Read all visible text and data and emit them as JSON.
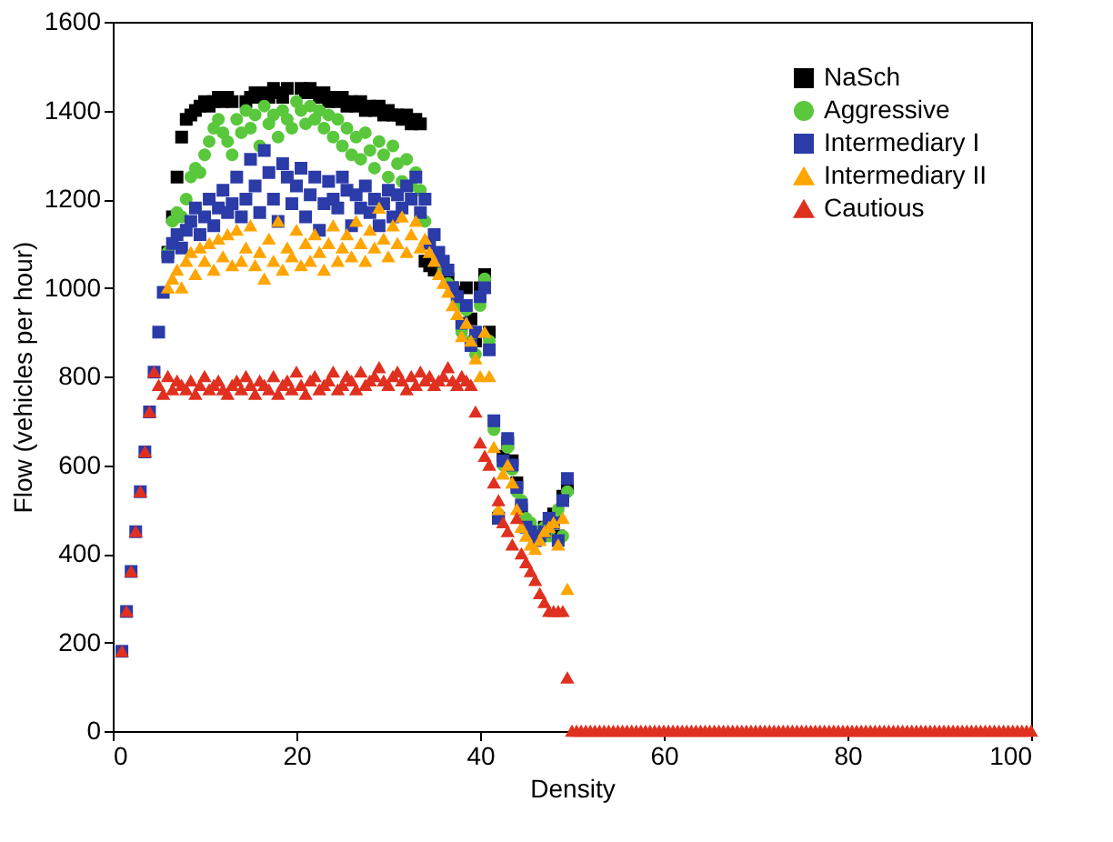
{
  "chart_data": {
    "type": "scatter",
    "xlabel": "Density",
    "ylabel": "Flow (vehicles per hour)",
    "xlim": [
      0,
      100
    ],
    "xticks": [
      0,
      20,
      40,
      60,
      80,
      100
    ],
    "ylim": [
      0,
      1600
    ],
    "yticks": [
      0,
      200,
      400,
      600,
      800,
      1000,
      1200,
      1400,
      1600
    ],
    "grid": false,
    "legend": "top right",
    "x": [
      1,
      1.5,
      2,
      2.5,
      3,
      3.5,
      4,
      4.5,
      5,
      5.5,
      6,
      6.5,
      7,
      7.5,
      8,
      8.5,
      9,
      9.5,
      10,
      10.5,
      11,
      11.5,
      12,
      12.5,
      13,
      13.5,
      14,
      14.5,
      15,
      15.5,
      16,
      16.5,
      17,
      17.5,
      18,
      18.5,
      19,
      19.5,
      20,
      20.5,
      21,
      21.5,
      22,
      22.5,
      23,
      23.5,
      24,
      24.5,
      25,
      25.5,
      26,
      26.5,
      27,
      27.5,
      28,
      28.5,
      29,
      29.5,
      30,
      30.5,
      31,
      31.5,
      32,
      32.5,
      33,
      33.5,
      34,
      34.5,
      35,
      35.5,
      36,
      36.5,
      37,
      37.5,
      38,
      38.5,
      39,
      39.5,
      40,
      40.5,
      41,
      41.5,
      42,
      42.5,
      43,
      43.5,
      44,
      44.5,
      45,
      45.5,
      46,
      46.5,
      47,
      47.5,
      48,
      48.5,
      49,
      49.5
    ],
    "series": [
      {
        "name": "NaSch",
        "color": "#000000",
        "marker": "square",
        "values": [
          null,
          null,
          null,
          null,
          null,
          null,
          null,
          null,
          null,
          null,
          1080,
          1160,
          1250,
          1340,
          1380,
          1390,
          1400,
          1410,
          1420,
          1410,
          1420,
          1430,
          1420,
          1430,
          1420,
          null,
          null,
          1420,
          1430,
          1440,
          1430,
          1440,
          1430,
          1450,
          1440,
          1430,
          1450,
          null,
          null,
          1450,
          1440,
          1450,
          1440,
          1430,
          1440,
          1420,
          1430,
          1420,
          1430,
          1410,
          1420,
          1410,
          1420,
          1400,
          1410,
          1400,
          1410,
          1390,
          1400,
          1390,
          1390,
          1380,
          1390,
          1370,
          1380,
          1370,
          1060,
          1050,
          1040,
          null,
          null,
          1020,
          1000,
          990,
          null,
          1000,
          930,
          880,
          1000,
          1030,
          900,
          null,
          480,
          620,
          650,
          610,
          560,
          500,
          null,
          null,
          null,
          null,
          460,
          null,
          490,
          440,
          530,
          550
        ]
      },
      {
        "name": "Aggressive",
        "color": "#5ac83c",
        "marker": "circle",
        "values": [
          null,
          null,
          null,
          null,
          null,
          null,
          null,
          null,
          null,
          null,
          1080,
          1150,
          1170,
          1160,
          1200,
          1250,
          1270,
          1260,
          1300,
          1330,
          1360,
          1380,
          1350,
          1330,
          1300,
          1380,
          1350,
          1400,
          1360,
          1390,
          1320,
          1410,
          1370,
          1390,
          1340,
          1400,
          1380,
          1360,
          1420,
          1400,
          1370,
          1410,
          1380,
          1400,
          1360,
          1390,
          1340,
          1380,
          1320,
          1360,
          1300,
          1340,
          1290,
          1350,
          1310,
          1270,
          1330,
          1300,
          1250,
          1320,
          1280,
          1240,
          1290,
          1230,
          1260,
          1220,
          1150,
          null,
          null,
          null,
          1040,
          1010,
          null,
          960,
          900,
          950,
          880,
          850,
          960,
          1020,
          880,
          680,
          490,
          600,
          640,
          590,
          540,
          520,
          480,
          470,
          450,
          430,
          460,
          440,
          480,
          500,
          440,
          540
        ]
      },
      {
        "name": "Intermediary I",
        "color": "#2b3ba8",
        "marker": "square",
        "values": [
          180,
          270,
          360,
          450,
          540,
          630,
          720,
          810,
          900,
          990,
          1070,
          1100,
          1120,
          1090,
          1130,
          1150,
          1180,
          1120,
          1160,
          1200,
          1140,
          1180,
          1220,
          1170,
          1190,
          1250,
          1160,
          1200,
          1290,
          1230,
          1170,
          1310,
          1260,
          1200,
          1150,
          1280,
          1250,
          1190,
          1230,
          1270,
          1160,
          1210,
          1250,
          1130,
          1190,
          1240,
          1200,
          1180,
          1250,
          1220,
          1140,
          1210,
          1180,
          1230,
          1170,
          1200,
          1140,
          1190,
          1220,
          1160,
          1210,
          1180,
          1230,
          1200,
          1250,
          1170,
          1200,
          1100,
          1120,
          1080,
          1060,
          1040,
          1000,
          980,
          920,
          960,
          870,
          900,
          980,
          1000,
          860,
          700,
          480,
          610,
          660,
          600,
          550,
          510,
          460,
          450,
          430,
          440,
          450,
          480,
          470,
          430,
          520,
          570
        ]
      },
      {
        "name": "Intermediary II",
        "color": "#ffa500",
        "marker": "triangle",
        "values": [
          null,
          null,
          null,
          null,
          null,
          null,
          null,
          null,
          null,
          null,
          1000,
          1020,
          1040,
          1000,
          1060,
          1080,
          1030,
          1090,
          1060,
          1100,
          1040,
          1110,
          1070,
          1120,
          1050,
          1130,
          1060,
          1090,
          1140,
          1050,
          1080,
          1020,
          1110,
          1060,
          1150,
          1040,
          1090,
          1070,
          1130,
          1050,
          1100,
          1060,
          1120,
          1080,
          1040,
          1100,
          1140,
          1060,
          1090,
          1120,
          1070,
          1150,
          1100,
          1060,
          1130,
          1090,
          1180,
          1110,
          1070,
          1140,
          1100,
          1160,
          1080,
          1120,
          1150,
          1090,
          1110,
          1080,
          1060,
          1030,
          1010,
          990,
          960,
          940,
          890,
          920,
          880,
          840,
          800,
          900,
          800,
          640,
          500,
          580,
          600,
          560,
          500,
          460,
          440,
          420,
          410,
          430,
          450,
          460,
          470,
          420,
          480,
          320
        ]
      },
      {
        "name": "Cautious",
        "color": "#e03020",
        "marker": "triangle",
        "x": [
          1,
          1.5,
          2,
          2.5,
          3,
          3.5,
          4,
          4.5,
          5,
          5.5,
          6,
          6.5,
          7,
          7.5,
          8,
          8.5,
          9,
          9.5,
          10,
          10.5,
          11,
          11.5,
          12,
          12.5,
          13,
          13.5,
          14,
          14.5,
          15,
          15.5,
          16,
          16.5,
          17,
          17.5,
          18,
          18.5,
          19,
          19.5,
          20,
          20.5,
          21,
          21.5,
          22,
          22.5,
          23,
          23.5,
          24,
          24.5,
          25,
          25.5,
          26,
          26.5,
          27,
          27.5,
          28,
          28.5,
          29,
          29.5,
          30,
          30.5,
          31,
          31.5,
          32,
          32.5,
          33,
          33.5,
          34,
          34.5,
          35,
          35.5,
          36,
          36.5,
          37,
          37.5,
          38,
          38.5,
          39,
          39.5,
          40,
          40.5,
          41,
          41.5,
          42,
          42.5,
          43,
          43.5,
          44,
          44.5,
          45,
          45.5,
          46,
          46.5,
          47,
          47.5,
          48,
          48.5,
          49,
          49.5,
          50,
          50.5,
          51,
          51.5,
          52,
          52.5,
          53,
          53.5,
          54,
          54.5,
          55,
          55.5,
          56,
          56.5,
          57,
          57.5,
          58,
          58.5,
          59,
          59.5,
          60,
          60.5,
          61,
          61.5,
          62,
          62.5,
          63,
          63.5,
          64,
          64.5,
          65,
          65.5,
          66,
          66.5,
          67,
          67.5,
          68,
          68.5,
          69,
          69.5,
          70,
          70.5,
          71,
          71.5,
          72,
          72.5,
          73,
          73.5,
          74,
          74.5,
          75,
          75.5,
          76,
          76.5,
          77,
          77.5,
          78,
          78.5,
          79,
          79.5,
          80,
          80.5,
          81,
          81.5,
          82,
          82.5,
          83,
          83.5,
          84,
          84.5,
          85,
          85.5,
          86,
          86.5,
          87,
          87.5,
          88,
          88.5,
          89,
          89.5,
          90,
          90.5,
          91,
          91.5,
          92,
          92.5,
          93,
          93.5,
          94,
          94.5,
          95,
          95.5,
          96,
          96.5,
          97,
          97.5,
          98,
          98.5,
          99,
          99.5,
          100
        ],
        "values": [
          180,
          270,
          360,
          450,
          540,
          630,
          720,
          810,
          780,
          760,
          800,
          770,
          790,
          780,
          770,
          790,
          760,
          780,
          800,
          770,
          780,
          790,
          770,
          760,
          780,
          790,
          770,
          800,
          780,
          760,
          790,
          780,
          770,
          800,
          760,
          780,
          790,
          770,
          810,
          780,
          760,
          790,
          800,
          770,
          780,
          790,
          810,
          770,
          780,
          800,
          790,
          770,
          810,
          780,
          790,
          800,
          820,
          790,
          780,
          800,
          810,
          790,
          770,
          800,
          780,
          810,
          790,
          800,
          780,
          790,
          800,
          820,
          790,
          780,
          800,
          790,
          780,
          720,
          650,
          620,
          600,
          560,
          520,
          470,
          450,
          420,
          480,
          400,
          380,
          360,
          340,
          310,
          290,
          270,
          270,
          270,
          270,
          120,
          0,
          0,
          0,
          0,
          0,
          0,
          0,
          0,
          0,
          0,
          0,
          0,
          0,
          0,
          0,
          0,
          0,
          0,
          0,
          0,
          0,
          0,
          0,
          0,
          0,
          0,
          0,
          0,
          0,
          0,
          0,
          0,
          0,
          0,
          0,
          0,
          0,
          0,
          0,
          0,
          0,
          0,
          0,
          0,
          0,
          0,
          0,
          0,
          0,
          0,
          0,
          0,
          0,
          0,
          0,
          0,
          0,
          0,
          0,
          0,
          0,
          0,
          0,
          0,
          0,
          0,
          0,
          0,
          0,
          0,
          0,
          0,
          0,
          0,
          0,
          0,
          0,
          0,
          0,
          0,
          0,
          0,
          0,
          0,
          0,
          0,
          0,
          0,
          0,
          0,
          0,
          0,
          0,
          0,
          0,
          0,
          0,
          0,
          0,
          0,
          0
        ]
      }
    ]
  }
}
